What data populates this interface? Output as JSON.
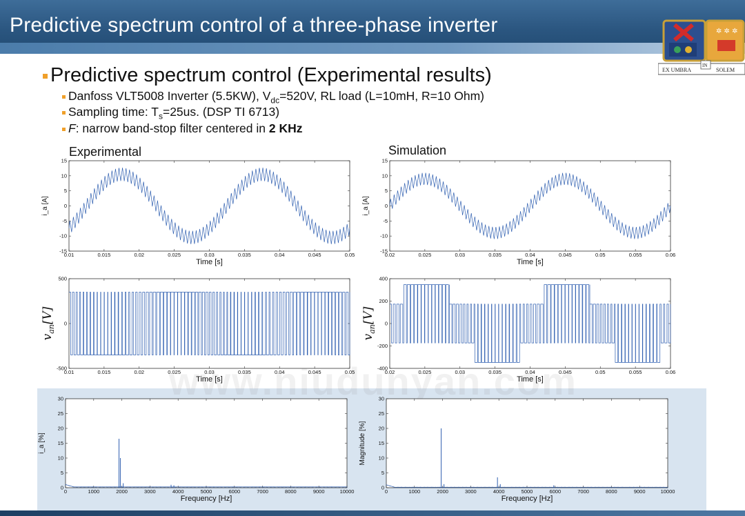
{
  "slide": {
    "title": "Predictive spectrum control of a three-phase inverter",
    "bullet": "Predictive spectrum control (Experimental results)",
    "sub1_a": "Danfoss VLT5008 Inverter (5.5KW),   V",
    "sub1_sub": "dc",
    "sub1_b": "=520V, RL load (L=10mH, R=10 Ohm)",
    "sub2_a": "Sampling time: T",
    "sub2_sub": "s",
    "sub2_b": "=25us. (DSP TI 6713)",
    "sub3_a": "F",
    "sub3_b": ": narrow band-stop filter centered in ",
    "sub3_bold": "2 KHz",
    "label_left": "Experimental",
    "label_right": "Simulation",
    "watermark": "www.niudunyan.com",
    "logo_left": "EX UMBRA",
    "logo_mid": "IN",
    "logo_right": "SOLEM"
  },
  "colors": {
    "trace": "#2f5fb0",
    "header": "#2b5680",
    "bullet": "#f0a02a",
    "bottom_bg": "#d8e4f0"
  },
  "chart_data": [
    {
      "id": "cur-exp",
      "type": "line",
      "title": "",
      "xlabel": "Time [s]",
      "ylabel": "i_a [A]",
      "xlim": [
        0.01,
        0.05
      ],
      "ylim": [
        -15,
        15
      ],
      "xticks": [
        0.01,
        0.015,
        0.02,
        0.025,
        0.03,
        0.035,
        0.04,
        0.045,
        0.05
      ],
      "xticklabels": [
        "0.01",
        "0.015",
        "0.02",
        "0.025",
        "0.03",
        "0.035",
        "0.04",
        "0.045",
        "0.05"
      ],
      "yticks": [
        -15,
        -10,
        -5,
        0,
        5,
        10,
        15
      ],
      "yticklabels": [
        "-15",
        "-10",
        "-5",
        "0",
        "5",
        "10",
        "15"
      ],
      "signal": {
        "kind": "sine_ripple",
        "amplitude": 10.5,
        "frequency": 50,
        "phase_peak": 0.0175,
        "ripple": 2.2,
        "ripple_freq": 2000
      }
    },
    {
      "id": "cur-sim",
      "type": "line",
      "title": "",
      "xlabel": "Time [s]",
      "ylabel": "i_a [A]",
      "xlim": [
        0.02,
        0.06
      ],
      "ylim": [
        -15,
        15
      ],
      "xticks": [
        0.02,
        0.025,
        0.03,
        0.035,
        0.04,
        0.045,
        0.05,
        0.055,
        0.06
      ],
      "xticklabels": [
        "0.02",
        "0.025",
        "0.03",
        "0.035",
        "0.04",
        "0.045",
        "0.05",
        "0.055",
        "0.06"
      ],
      "yticks": [
        -15,
        -10,
        -5,
        0,
        5,
        10,
        15
      ],
      "yticklabels": [
        "-15",
        "-10",
        "-5",
        "0",
        "5",
        "10",
        "15"
      ],
      "signal": {
        "kind": "sine_ripple",
        "amplitude": 9,
        "frequency": 50,
        "phase_peak": 0.025,
        "ripple": 2.0,
        "ripple_freq": 2000
      }
    },
    {
      "id": "volt-exp",
      "type": "line",
      "title": "",
      "xlabel": "Time [s]",
      "ylabel": "v_an [V]",
      "xlim": [
        0.01,
        0.05
      ],
      "ylim": [
        -500,
        500
      ],
      "xticks": [
        0.01,
        0.015,
        0.02,
        0.025,
        0.03,
        0.035,
        0.04,
        0.045,
        0.05
      ],
      "xticklabels": [
        "0.01",
        "0.015",
        "0.02",
        "0.025",
        "0.03",
        "0.035",
        "0.04",
        "0.045",
        "0.05"
      ],
      "yticks": [
        -500,
        0,
        500
      ],
      "yticklabels": [
        "-500",
        "0",
        "500"
      ],
      "signal": {
        "kind": "pwm",
        "levels": [
          -350,
          350
        ],
        "switch_freq": 2000
      }
    },
    {
      "id": "volt-sim",
      "type": "line",
      "title": "",
      "xlabel": "Time [s]",
      "ylabel": "v_an [V]",
      "xlim": [
        0.02,
        0.06
      ],
      "ylim": [
        -400,
        400
      ],
      "xticks": [
        0.02,
        0.025,
        0.03,
        0.035,
        0.04,
        0.045,
        0.05,
        0.055,
        0.06
      ],
      "xticklabels": [
        "0.02",
        "0.025",
        "0.03",
        "0.035",
        "0.04",
        "0.045",
        "0.05",
        "0.055",
        "0.06"
      ],
      "yticks": [
        -400,
        -200,
        0,
        200,
        400
      ],
      "yticklabels": [
        "-400",
        "-200",
        "0",
        "200",
        "400"
      ],
      "signal": {
        "kind": "pwm3",
        "levels": [
          -347,
          -173,
          173,
          347
        ],
        "switch_freq": 2000
      }
    },
    {
      "id": "fft-exp",
      "type": "line",
      "title": "",
      "xlabel": "Frequency [Hz]",
      "ylabel": "i_a [%]",
      "xlim": [
        0,
        10000
      ],
      "ylim": [
        0,
        30
      ],
      "xticks": [
        0,
        1000,
        2000,
        3000,
        4000,
        5000,
        6000,
        7000,
        8000,
        9000,
        10000
      ],
      "xticklabels": [
        "0",
        "1000",
        "2000",
        "3000",
        "4000",
        "5000",
        "6000",
        "7000",
        "8000",
        "9000",
        "10000"
      ],
      "yticks": [
        0,
        5,
        10,
        15,
        20,
        25,
        30
      ],
      "yticklabels": [
        "0",
        "5",
        "10",
        "15",
        "20",
        "25",
        "30"
      ],
      "peaks": [
        {
          "x": 1900,
          "y": 16.5
        },
        {
          "x": 1950,
          "y": 10
        },
        {
          "x": 2050,
          "y": 1.5
        },
        {
          "x": 3750,
          "y": 1
        },
        {
          "x": 3850,
          "y": 0.8
        }
      ],
      "floor": 0.3
    },
    {
      "id": "fft-sim",
      "type": "line",
      "title": "",
      "xlabel": "Frequency [Hz]",
      "ylabel": "Magnitude [%]",
      "xlim": [
        0,
        10000
      ],
      "ylim": [
        0,
        30
      ],
      "xticks": [
        0,
        1000,
        2000,
        3000,
        4000,
        5000,
        6000,
        7000,
        8000,
        9000,
        10000
      ],
      "xticklabels": [
        "0",
        "1000",
        "2000",
        "3000",
        "4000",
        "5000",
        "6000",
        "7000",
        "8000",
        "9000",
        "10000"
      ],
      "yticks": [
        0,
        5,
        10,
        15,
        20,
        25,
        30
      ],
      "yticklabels": [
        "0",
        "5",
        "10",
        "15",
        "20",
        "25",
        "30"
      ],
      "peaks": [
        {
          "x": 1950,
          "y": 20
        },
        {
          "x": 2050,
          "y": 1.2
        },
        {
          "x": 3950,
          "y": 3.5
        },
        {
          "x": 4050,
          "y": 1.2
        },
        {
          "x": 5950,
          "y": 0.8
        }
      ],
      "floor": 0.2
    }
  ]
}
